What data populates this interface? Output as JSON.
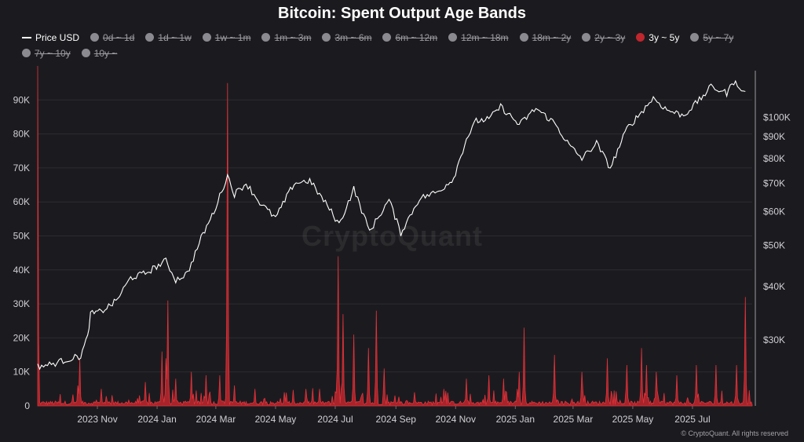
{
  "chart_data": {
    "type": "line",
    "title": "Bitcoin: Spent Output Age Bands",
    "legend": [
      {
        "name": "Price USD",
        "kind": "line",
        "active": true
      },
      {
        "name": "0d ~ 1d",
        "kind": "dot",
        "active": false
      },
      {
        "name": "1d ~ 1w",
        "kind": "dot",
        "active": false
      },
      {
        "name": "1w ~ 1m",
        "kind": "dot",
        "active": false
      },
      {
        "name": "1m ~ 3m",
        "kind": "dot",
        "active": false
      },
      {
        "name": "3m ~ 6m",
        "kind": "dot",
        "active": false
      },
      {
        "name": "6m ~ 12m",
        "kind": "dot",
        "active": false
      },
      {
        "name": "12m ~ 18m",
        "kind": "dot",
        "active": false
      },
      {
        "name": "18m ~ 2y",
        "kind": "dot",
        "active": false
      },
      {
        "name": "2y ~ 3y",
        "kind": "dot",
        "active": false
      },
      {
        "name": "3y ~ 5y",
        "kind": "dot",
        "active": true
      },
      {
        "name": "5y ~ 7y",
        "kind": "dot",
        "active": false
      },
      {
        "name": "7y ~ 10y",
        "kind": "dot",
        "active": false
      },
      {
        "name": "10y ~",
        "kind": "dot",
        "active": false
      }
    ],
    "x_tick_labels": [
      "2023 Nov",
      "2024 Jan",
      "2024 Mar",
      "2024 May",
      "2024 Jul",
      "2024 Sep",
      "2024 Nov",
      "2025 Jan",
      "2025 Mar",
      "2025 May",
      "2025 Jul"
    ],
    "y_left_ticks": [
      0,
      10000,
      20000,
      30000,
      40000,
      50000,
      60000,
      70000,
      80000,
      90000
    ],
    "y_left_labels": [
      "0",
      "10K",
      "20K",
      "30K",
      "40K",
      "50K",
      "60K",
      "70K",
      "80K",
      "90K"
    ],
    "y_right_ticks": [
      30000,
      40000,
      50000,
      60000,
      70000,
      80000,
      90000,
      100000
    ],
    "y_right_labels": [
      "$30K",
      "$40K",
      "$50K",
      "$60K",
      "$70K",
      "$80K",
      "$90K",
      "$100K"
    ],
    "y_right_scale": "log",
    "x_range": [
      "2023-09-01",
      "2025-08-31"
    ],
    "grid": true,
    "legend_position": "top",
    "colors": {
      "price": "#ffffff",
      "band": "#c0262d",
      "background": "#1b1b1f",
      "grid": "#2c2c31"
    },
    "series": [
      {
        "name": "Price USD",
        "axis": "right",
        "points": [
          [
            "2023-09-01",
            26000
          ],
          [
            "2023-09-15",
            26300
          ],
          [
            "2023-10-01",
            27000
          ],
          [
            "2023-10-15",
            27500
          ],
          [
            "2023-10-22",
            30500
          ],
          [
            "2023-10-25",
            34500
          ],
          [
            "2023-11-05",
            35000
          ],
          [
            "2023-11-20",
            37000
          ],
          [
            "2023-12-05",
            42000
          ],
          [
            "2023-12-20",
            43000
          ],
          [
            "2024-01-10",
            46000
          ],
          [
            "2024-01-20",
            41500
          ],
          [
            "2024-02-01",
            43000
          ],
          [
            "2024-02-15",
            52000
          ],
          [
            "2024-02-28",
            60000
          ],
          [
            "2024-03-13",
            73000
          ],
          [
            "2024-03-20",
            66000
          ],
          [
            "2024-04-01",
            70000
          ],
          [
            "2024-04-15",
            63000
          ],
          [
            "2024-05-01",
            58000
          ],
          [
            "2024-05-20",
            70000
          ],
          [
            "2024-06-05",
            71000
          ],
          [
            "2024-06-25",
            61000
          ],
          [
            "2024-07-05",
            56000
          ],
          [
            "2024-07-20",
            68000
          ],
          [
            "2024-08-05",
            54000
          ],
          [
            "2024-08-25",
            64000
          ],
          [
            "2024-09-06",
            53500
          ],
          [
            "2024-09-25",
            64500
          ],
          [
            "2024-10-15",
            67000
          ],
          [
            "2024-10-30",
            72000
          ],
          [
            "2024-11-12",
            89000
          ],
          [
            "2024-11-22",
            98000
          ],
          [
            "2024-12-05",
            99000
          ],
          [
            "2024-12-17",
            106000
          ],
          [
            "2025-01-05",
            96000
          ],
          [
            "2025-01-22",
            105000
          ],
          [
            "2025-02-10",
            97000
          ],
          [
            "2025-02-25",
            86000
          ],
          [
            "2025-03-10",
            80000
          ],
          [
            "2025-03-25",
            87000
          ],
          [
            "2025-04-08",
            76000
          ],
          [
            "2025-04-25",
            94000
          ],
          [
            "2025-05-10",
            103000
          ],
          [
            "2025-05-22",
            111000
          ],
          [
            "2025-06-05",
            104000
          ],
          [
            "2025-06-22",
            101000
          ],
          [
            "2025-07-10",
            111000
          ],
          [
            "2025-07-20",
            118000
          ],
          [
            "2025-08-05",
            114000
          ],
          [
            "2025-08-14",
            123000
          ],
          [
            "2025-08-20",
            114000
          ],
          [
            "2025-08-24",
            115000
          ]
        ]
      },
      {
        "name": "3y ~ 5y",
        "axis": "left",
        "type": "area",
        "baseline": 800,
        "spikes": [
          [
            "2023-09-01",
            100000
          ],
          [
            "2023-10-14",
            14000
          ],
          [
            "2023-10-12",
            6000
          ],
          [
            "2023-11-05",
            5000
          ],
          [
            "2023-12-20",
            7000
          ],
          [
            "2024-01-06",
            16000
          ],
          [
            "2024-01-10",
            14000
          ],
          [
            "2024-01-12",
            31000
          ],
          [
            "2024-01-20",
            8000
          ],
          [
            "2024-02-05",
            10000
          ],
          [
            "2024-02-20",
            9000
          ],
          [
            "2024-03-05",
            9000
          ],
          [
            "2024-03-13",
            95000
          ],
          [
            "2024-03-20",
            6000
          ],
          [
            "2024-04-10",
            5000
          ],
          [
            "2024-05-10",
            4000
          ],
          [
            "2024-06-01",
            5000
          ],
          [
            "2024-06-15",
            5000
          ],
          [
            "2024-07-04",
            44000
          ],
          [
            "2024-07-09",
            27000
          ],
          [
            "2024-07-20",
            21000
          ],
          [
            "2024-08-04",
            17000
          ],
          [
            "2024-08-12",
            28000
          ],
          [
            "2024-08-20",
            11000
          ],
          [
            "2024-09-20",
            4000
          ],
          [
            "2024-10-20",
            5000
          ],
          [
            "2024-11-12",
            8000
          ],
          [
            "2024-12-05",
            9000
          ],
          [
            "2024-12-20",
            8000
          ],
          [
            "2025-01-05",
            10000
          ],
          [
            "2025-01-10",
            23000
          ],
          [
            "2025-02-10",
            15000
          ],
          [
            "2025-03-10",
            10000
          ],
          [
            "2025-04-05",
            14000
          ],
          [
            "2025-04-25",
            12000
          ],
          [
            "2025-05-10",
            17000
          ],
          [
            "2025-05-15",
            12000
          ],
          [
            "2025-05-25",
            10000
          ],
          [
            "2025-06-15",
            9000
          ],
          [
            "2025-07-05",
            12000
          ],
          [
            "2025-07-25",
            12000
          ],
          [
            "2025-08-15",
            12000
          ],
          [
            "2025-08-24",
            32000
          ]
        ]
      }
    ]
  },
  "watermark": "CryptoQuant",
  "copyright": "© CryptoQuant. All rights reserved"
}
